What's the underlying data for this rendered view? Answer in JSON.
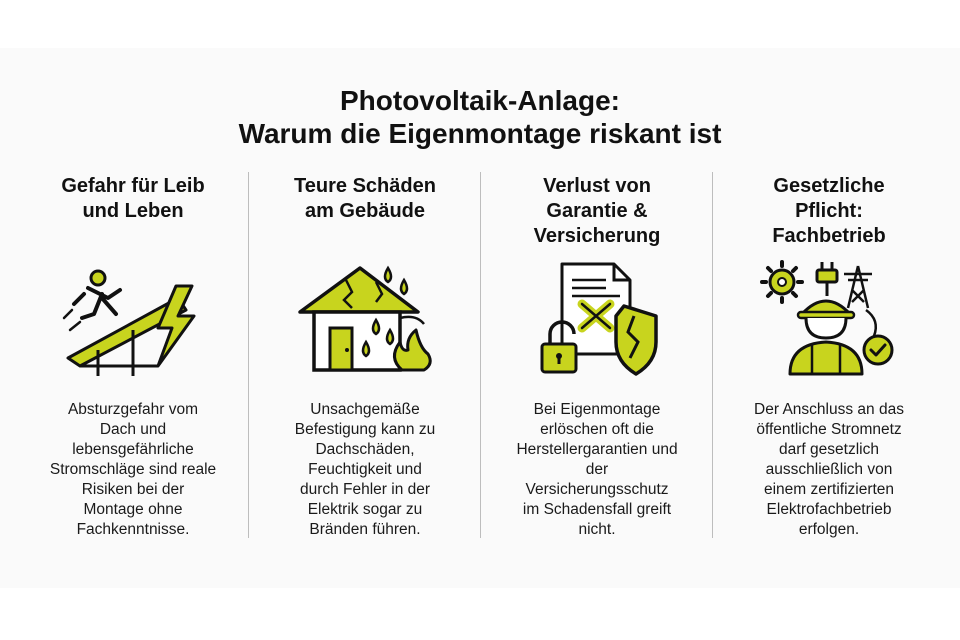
{
  "title": {
    "line1": "Photovoltaik-Anlage:",
    "line2": "Warum die Eigenmontage riskant ist"
  },
  "accent_color": "#c8d41e",
  "columns": [
    {
      "heading": "Gefahr für Leib\nund Leben",
      "icon": "falling-worker-lightning-icon",
      "text": "Absturzgefahr vom\nDach und\nlebensgefährliche\nStromschläge sind reale\nRisiken bei der\nMontage ohne\nFachkenntnisse."
    },
    {
      "heading": "Teure Schäden\nam Gebäude",
      "icon": "damaged-house-icon",
      "text": "Unsachgemäße\nBefestigung kann zu\nDachschäden,\nFeuchtigkeit und\ndurch Fehler in der\nElektrik sogar zu\nBränden führen."
    },
    {
      "heading": "Verlust von\nGarantie &\nVersicherung",
      "icon": "void-warranty-shield-icon",
      "text": "Bei Eigenmontage\nerlöschen oft die\nHerstellergarantien und\nder\nVersicherungsschutz\nim Schadensfall greift\nnicht."
    },
    {
      "heading": "Gesetzliche\nPflicht:\nFachbetrieb",
      "icon": "electrician-certified-icon",
      "text": "Der Anschluss an das\nöffentliche Stromnetz\ndarf gesetzlich\nausschließlich von\neinem zertifizierten\nElektrofachbetrieb\nerfolgen."
    }
  ]
}
